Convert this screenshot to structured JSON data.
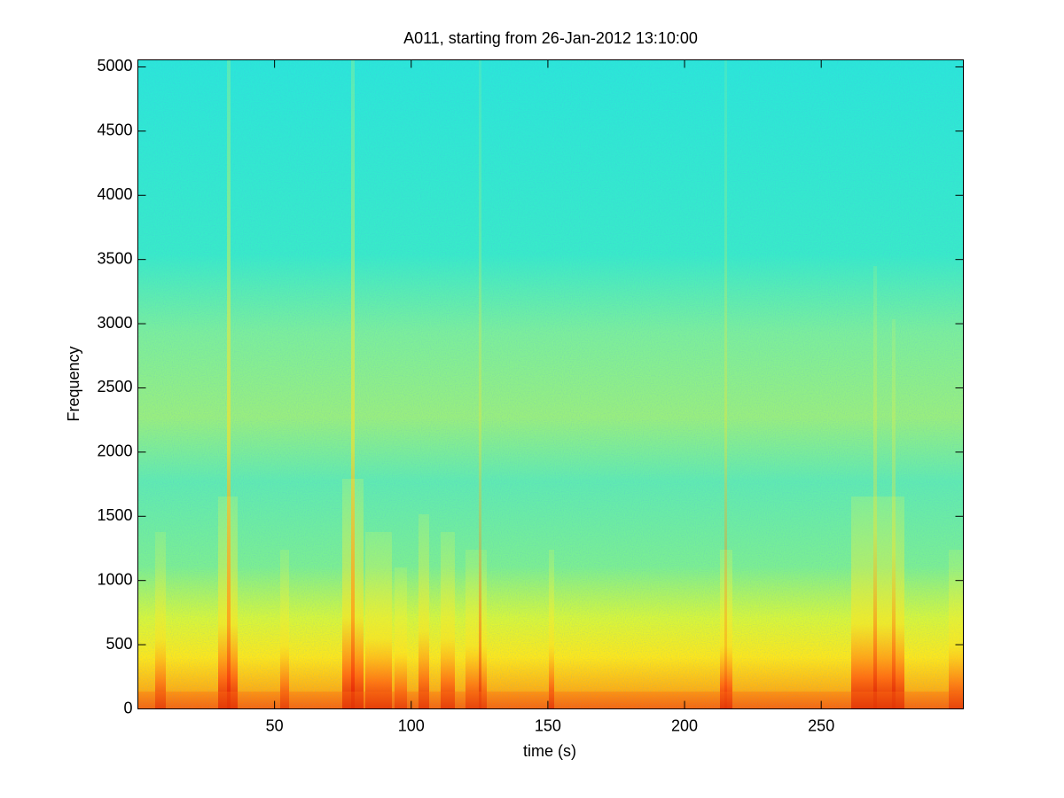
{
  "chart_data": {
    "type": "heatmap",
    "title": "A011, starting from 26-Jan-2012 13:10:00",
    "x_label": "time (s)",
    "y_label": "Frequency",
    "xlim": [
      0,
      302
    ],
    "ylim": [
      0,
      5055
    ],
    "xticks": [
      50,
      100,
      150,
      200,
      250
    ],
    "yticks": [
      0,
      500,
      1000,
      1500,
      2000,
      2500,
      3000,
      3500,
      4000,
      4500,
      5000
    ]
  }
}
